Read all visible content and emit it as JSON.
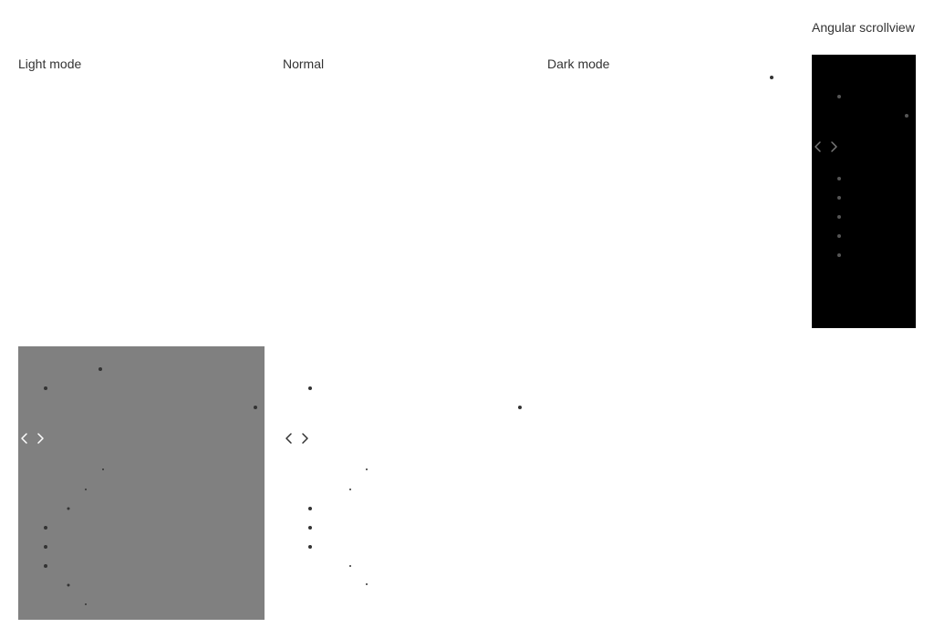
{
  "labels": {
    "light": "Light mode",
    "normal": "Normal",
    "dark": "Dark mode",
    "angular": "Angular scrollview"
  },
  "colors": {
    "light_panel_bg": "#808080",
    "dark_panel_bg": "#000000",
    "dot_light": "#333333",
    "dot_normal": "#333333",
    "dot_dark": "#555555",
    "arrow_light": "#ffffff",
    "arrow_normal": "#333333",
    "arrow_dark": "#777777"
  },
  "icons": {
    "prev": "chevron-left-icon",
    "next": "chevron-right-icon"
  }
}
